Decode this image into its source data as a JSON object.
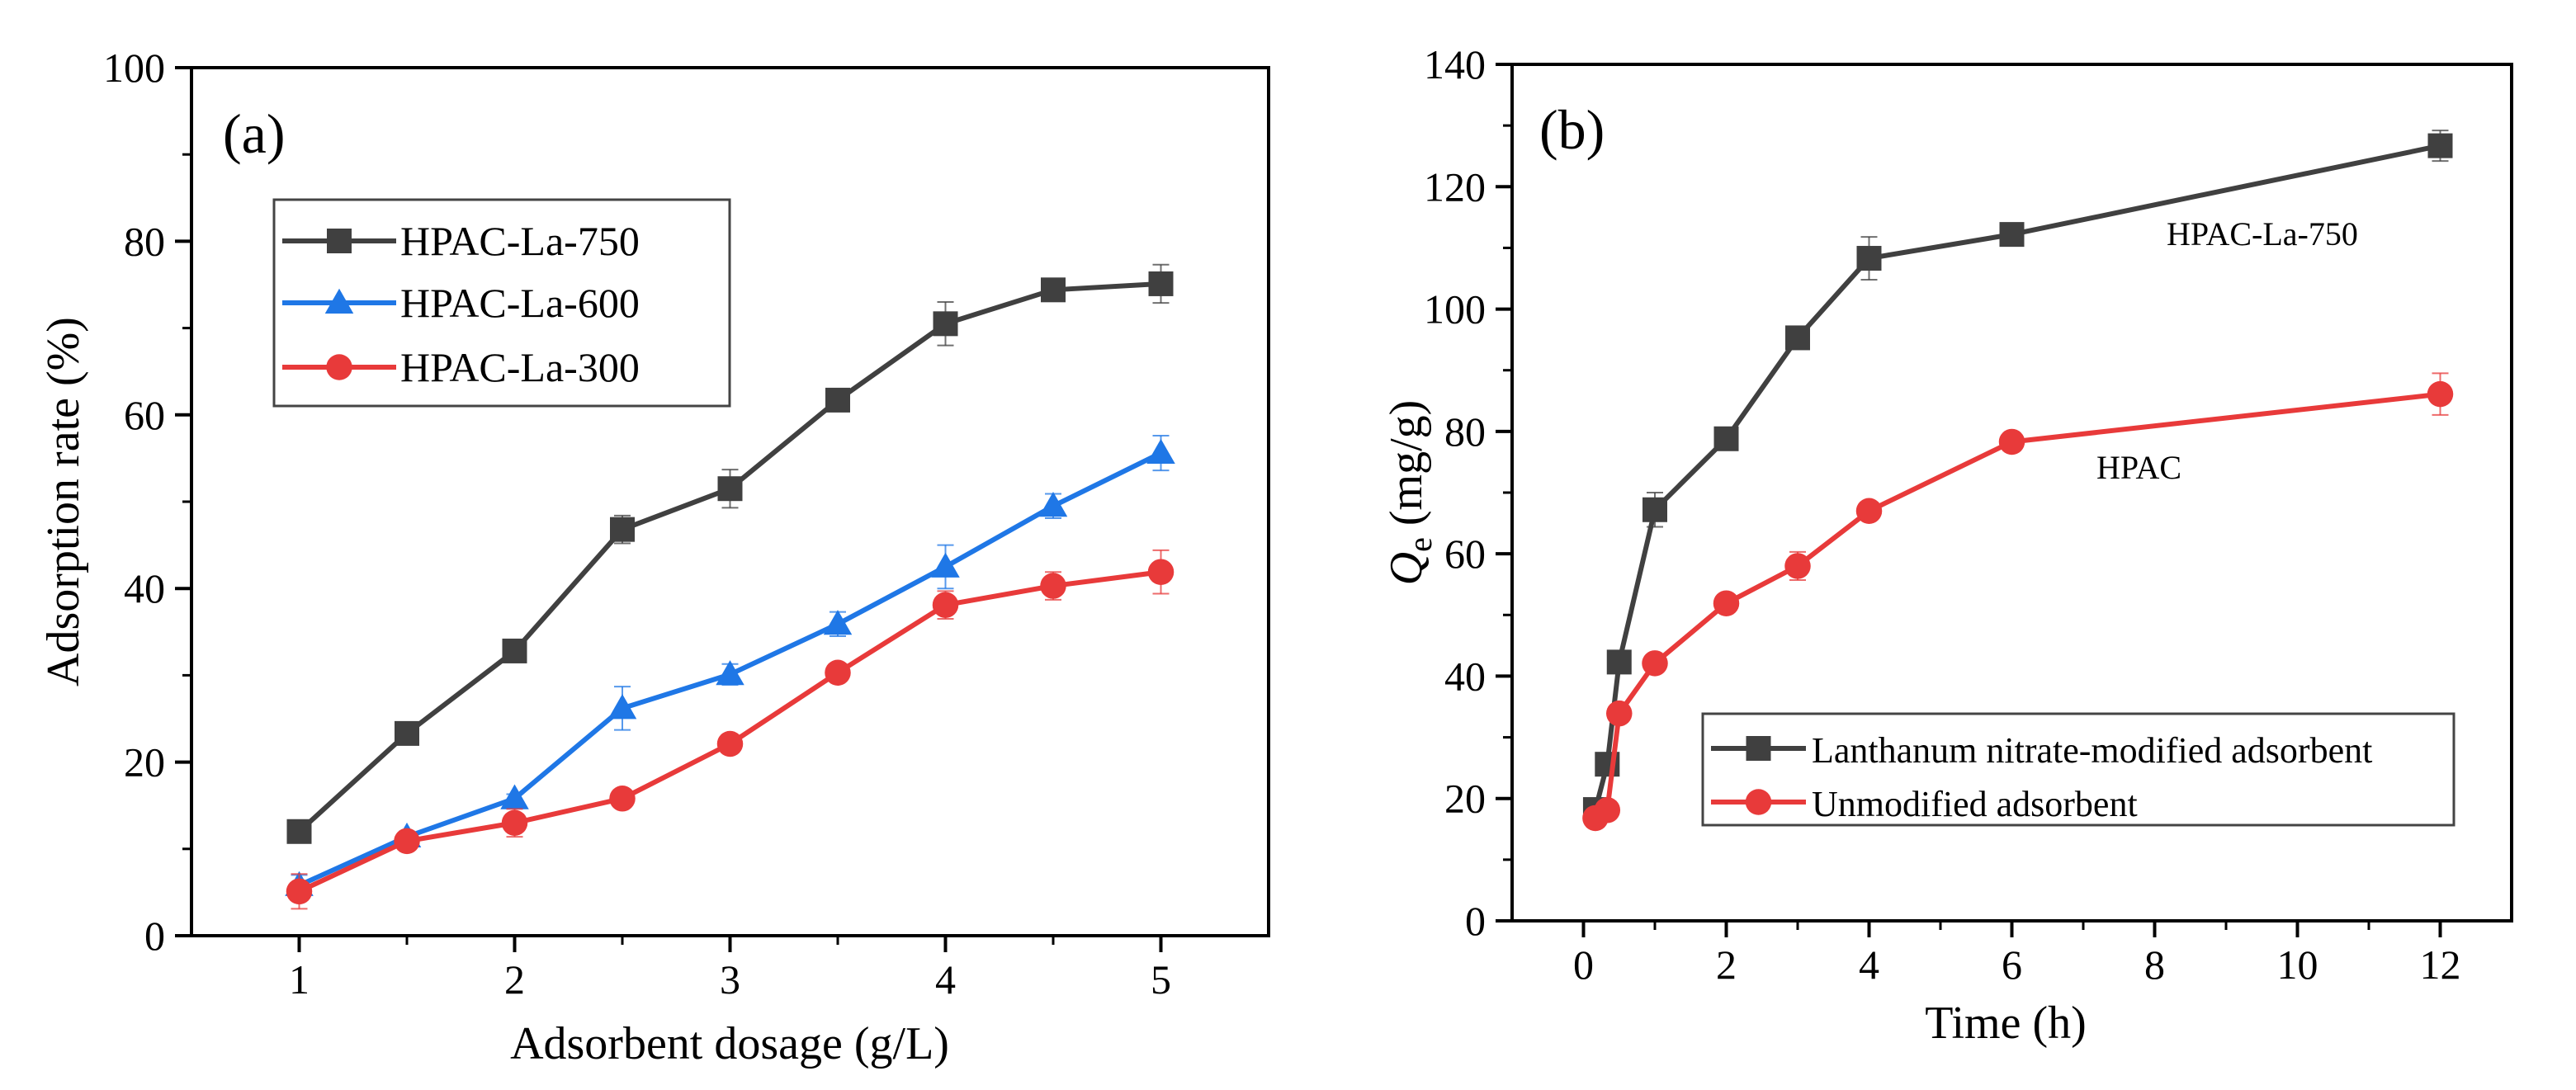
{
  "colors": {
    "gray": "#404040",
    "blue": "#1f77e6",
    "red": "#e83a3a",
    "axis": "#000000"
  },
  "chart_data": [
    {
      "type": "line",
      "panel_label": "(a)",
      "xlabel": "Adsorbent dosage (g/L)",
      "ylabel": "Adsorption rate (%)",
      "xlim": [
        0.5,
        5.5
      ],
      "ylim": [
        0,
        100
      ],
      "xticks": [
        "1",
        "2",
        "3",
        "4",
        "5"
      ],
      "yticks": [
        "0",
        "20",
        "40",
        "60",
        "80",
        "100"
      ],
      "legend_position": "upper-left",
      "x": [
        1,
        1.5,
        2,
        2.5,
        3,
        3.5,
        4,
        4.5,
        5
      ],
      "series": [
        {
          "name": "HPAC-La-750",
          "marker": "square",
          "color": "#404040",
          "values": [
            12.0,
            23.3,
            32.8,
            46.8,
            51.5,
            61.7,
            70.5,
            74.4,
            75.1
          ],
          "errors": [
            0.5,
            1.2,
            0.6,
            1.6,
            2.2,
            0.8,
            2.5,
            0.6,
            2.2
          ]
        },
        {
          "name": "HPAC-La-600",
          "marker": "triangle",
          "color": "#1f77e6",
          "values": [
            5.8,
            11.4,
            15.8,
            26.2,
            30.1,
            35.9,
            42.5,
            49.5,
            55.6
          ],
          "errors": [
            1.2,
            0.6,
            0.5,
            2.5,
            1.2,
            1.4,
            2.5,
            1.4,
            2.0
          ]
        },
        {
          "name": "HPAC-La-300",
          "marker": "circle",
          "color": "#e83a3a",
          "values": [
            5.1,
            10.9,
            13.0,
            15.8,
            22.1,
            30.3,
            38.1,
            40.3,
            41.9
          ],
          "errors": [
            2.0,
            0.5,
            1.6,
            0.5,
            1.0,
            0.5,
            1.6,
            1.6,
            2.5
          ]
        }
      ]
    },
    {
      "type": "line",
      "panel_label": "(b)",
      "xlabel": "Time (h)",
      "ylabel": "Q",
      "ylabel_subscript": "e",
      "ylabel_unit": "(mg/g)",
      "xlim": [
        -1,
        13
      ],
      "ylim": [
        0,
        140
      ],
      "xticks": [
        "0",
        "2",
        "4",
        "6",
        "8",
        "10",
        "12"
      ],
      "yticks": [
        "0",
        "20",
        "40",
        "60",
        "80",
        "100",
        "120",
        "140"
      ],
      "legend_position": "lower-right",
      "annotations": [
        "HPAC-La-750",
        "HPAC"
      ],
      "x": [
        0.167,
        0.333,
        0.5,
        1,
        2,
        3,
        4,
        6,
        12
      ],
      "series": [
        {
          "name": "Lanthanum nitrate-modified adsorbent",
          "marker": "square",
          "color": "#404040",
          "values": [
            18.2,
            25.6,
            42.3,
            67.2,
            78.8,
            95.3,
            108.3,
            112.2,
            126.7
          ],
          "errors": [
            0.5,
            0.5,
            1.0,
            2.8,
            0.8,
            0.8,
            3.5,
            1.2,
            2.5
          ]
        },
        {
          "name": "Unmodified adsorbent",
          "marker": "circle",
          "color": "#e83a3a",
          "values": [
            16.8,
            18.1,
            33.9,
            42.1,
            51.9,
            58.0,
            67.0,
            78.3,
            86.1
          ],
          "errors": [
            0.5,
            0.5,
            0.8,
            1.0,
            0.8,
            2.3,
            1.2,
            0.5,
            3.4
          ]
        }
      ]
    }
  ]
}
